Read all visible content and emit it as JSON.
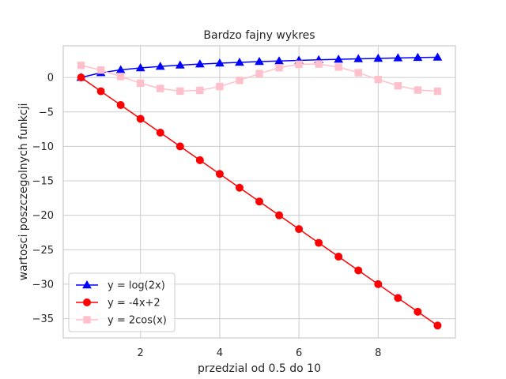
{
  "chart_data": {
    "type": "line",
    "title": "Bardzo fajny wykres",
    "xlabel": "przedzial od 0.5 do 10",
    "ylabel": "wartosci poszczegolnych funkcji",
    "xlim": [
      0.05,
      9.95
    ],
    "ylim": [
      -37.8,
      4.6
    ],
    "xticks": [
      2,
      4,
      6,
      8
    ],
    "yticks": [
      0,
      -5,
      -10,
      -15,
      -20,
      -25,
      -30,
      -35
    ],
    "grid": true,
    "legend_position": "lower-left",
    "x": [
      0.5,
      1.0,
      1.5,
      2.0,
      2.5,
      3.0,
      3.5,
      4.0,
      4.5,
      5.0,
      5.5,
      6.0,
      6.5,
      7.0,
      7.5,
      8.0,
      8.5,
      9.0,
      9.5
    ],
    "series": [
      {
        "name": "y = log(2x)",
        "color": "#0000ff",
        "marker": "triangle",
        "values": [
          0.0,
          0.693,
          1.099,
          1.386,
          1.609,
          1.792,
          1.946,
          2.079,
          2.197,
          2.303,
          2.398,
          2.485,
          2.565,
          2.639,
          2.708,
          2.773,
          2.833,
          2.89,
          2.944
        ]
      },
      {
        "name": "y = -4x+2",
        "color": "#ff0000",
        "marker": "circle",
        "values": [
          0,
          -2,
          -4,
          -6,
          -8,
          -10,
          -12,
          -14,
          -16,
          -18,
          -20,
          -22,
          -24,
          -26,
          -28,
          -30,
          -32,
          -34,
          -36
        ]
      },
      {
        "name": "y = 2cos(x)",
        "color": "#ffc0cb",
        "marker": "square",
        "values": [
          1.755,
          1.081,
          0.141,
          -0.832,
          -1.602,
          -1.98,
          -1.873,
          -1.307,
          -0.421,
          0.567,
          1.417,
          1.92,
          1.953,
          1.508,
          0.693,
          -0.291,
          -1.204,
          -1.822,
          -1.994
        ]
      }
    ]
  }
}
